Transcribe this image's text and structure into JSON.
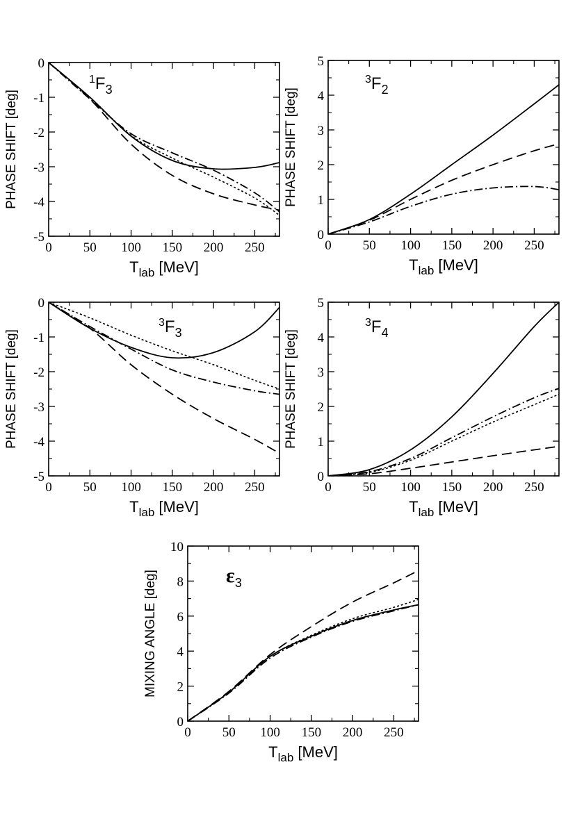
{
  "chart_data": [
    {
      "type": "line",
      "panel_label": {
        "main": "F",
        "pre": "1",
        "sub": "3"
      },
      "xlabel": {
        "main": "T",
        "sub": "lab",
        "unit": " [MeV]"
      },
      "ylabel": "PHASE  SHIFT [deg]",
      "xlim": [
        0,
        280
      ],
      "ylim": [
        -5,
        0
      ],
      "xticks": [
        0,
        50,
        100,
        150,
        200,
        250
      ],
      "yticks": [
        0,
        -1,
        -2,
        -3,
        -4,
        -5
      ],
      "series": [
        {
          "name": "solid",
          "style": "solid",
          "x": [
            0,
            50,
            100,
            150,
            200,
            250,
            280
          ],
          "y": [
            0,
            -1.0,
            -2.12,
            -2.82,
            -3.06,
            -3.02,
            -2.88
          ]
        },
        {
          "name": "long-dashed",
          "style": "dash",
          "x": [
            0,
            50,
            100,
            150,
            200,
            250,
            280
          ],
          "y": [
            0,
            -1.05,
            -2.35,
            -3.25,
            -3.78,
            -4.1,
            -4.25
          ]
        },
        {
          "name": "dash-dotted",
          "style": "dashdot",
          "x": [
            0,
            50,
            100,
            150,
            200,
            250,
            280
          ],
          "y": [
            0,
            -1.05,
            -2.05,
            -2.6,
            -3.1,
            -3.75,
            -4.3
          ]
        },
        {
          "name": "dotted",
          "style": "dot",
          "x": [
            0,
            50,
            100,
            150,
            200,
            250,
            280
          ],
          "y": [
            0,
            -1.0,
            -2.1,
            -2.75,
            -3.3,
            -3.9,
            -4.4
          ]
        }
      ]
    },
    {
      "type": "line",
      "panel_label": {
        "main": "F",
        "pre": "3",
        "sub": "2"
      },
      "xlabel": {
        "main": "T",
        "sub": "lab",
        "unit": " [MeV]"
      },
      "ylabel": "PHASE  SHIFT [deg]",
      "xlim": [
        0,
        280
      ],
      "ylim": [
        0,
        5
      ],
      "xticks": [
        0,
        50,
        100,
        150,
        200,
        250
      ],
      "yticks": [
        0,
        1,
        2,
        3,
        4,
        5
      ],
      "series": [
        {
          "name": "solid",
          "style": "solid",
          "x": [
            0,
            50,
            100,
            150,
            200,
            250,
            280
          ],
          "y": [
            0,
            0.42,
            1.15,
            2.0,
            2.85,
            3.75,
            4.3
          ]
        },
        {
          "name": "long-dashed",
          "style": "dash",
          "x": [
            0,
            50,
            100,
            150,
            200,
            250,
            280
          ],
          "y": [
            0,
            0.4,
            1.0,
            1.55,
            2.0,
            2.4,
            2.6
          ]
        },
        {
          "name": "dash-dotted",
          "style": "dashdot",
          "x": [
            0,
            50,
            100,
            150,
            200,
            250,
            280
          ],
          "y": [
            0,
            0.35,
            0.8,
            1.15,
            1.33,
            1.37,
            1.28
          ]
        }
      ]
    },
    {
      "type": "line",
      "panel_label": {
        "main": "F",
        "pre": "3",
        "sub": "3"
      },
      "xlabel": {
        "main": "T",
        "sub": "lab",
        "unit": " [MeV]"
      },
      "ylabel": "PHASE  SHIFT [deg]",
      "xlim": [
        0,
        280
      ],
      "ylim": [
        -5,
        0
      ],
      "xticks": [
        0,
        50,
        100,
        150,
        200,
        250
      ],
      "yticks": [
        0,
        -1,
        -2,
        -3,
        -4,
        -5
      ],
      "series": [
        {
          "name": "solid",
          "style": "solid",
          "x": [
            0,
            50,
            100,
            150,
            200,
            250,
            280
          ],
          "y": [
            0,
            -0.75,
            -1.3,
            -1.6,
            -1.45,
            -0.85,
            -0.15
          ]
        },
        {
          "name": "long-dashed",
          "style": "dash",
          "x": [
            0,
            50,
            100,
            150,
            200,
            250,
            280
          ],
          "y": [
            0,
            -0.75,
            -1.8,
            -2.65,
            -3.35,
            -3.95,
            -4.35
          ]
        },
        {
          "name": "dash-dotted",
          "style": "dashdot",
          "x": [
            0,
            50,
            100,
            150,
            200,
            250,
            280
          ],
          "y": [
            0,
            -0.7,
            -1.35,
            -1.95,
            -2.3,
            -2.55,
            -2.65
          ]
        },
        {
          "name": "dotted",
          "style": "dot",
          "x": [
            0,
            50,
            100,
            150,
            200,
            250,
            280
          ],
          "y": [
            0,
            -0.45,
            -0.95,
            -1.4,
            -1.8,
            -2.25,
            -2.5
          ]
        }
      ]
    },
    {
      "type": "line",
      "panel_label": {
        "main": "F",
        "pre": "3",
        "sub": "4"
      },
      "xlabel": {
        "main": "T",
        "sub": "lab",
        "unit": " [MeV]"
      },
      "ylabel": "PHASE  SHIFT [deg]",
      "xlim": [
        0,
        280
      ],
      "ylim": [
        0,
        5
      ],
      "xticks": [
        0,
        50,
        100,
        150,
        200,
        250
      ],
      "yticks": [
        0,
        1,
        2,
        3,
        4,
        5
      ],
      "series": [
        {
          "name": "solid",
          "style": "solid",
          "x": [
            0,
            50,
            100,
            150,
            200,
            250,
            280
          ],
          "y": [
            0,
            0.18,
            0.75,
            1.7,
            2.95,
            4.3,
            5.0
          ]
        },
        {
          "name": "long-dashed",
          "style": "dash",
          "x": [
            0,
            50,
            100,
            150,
            200,
            250,
            280
          ],
          "y": [
            0,
            0.06,
            0.22,
            0.4,
            0.58,
            0.75,
            0.85
          ]
        },
        {
          "name": "dash-dotted",
          "style": "dashdot",
          "x": [
            0,
            50,
            100,
            150,
            200,
            250,
            280
          ],
          "y": [
            0,
            0.12,
            0.5,
            1.1,
            1.7,
            2.25,
            2.52
          ]
        },
        {
          "name": "dotted",
          "style": "dot",
          "x": [
            0,
            50,
            100,
            150,
            200,
            250,
            280
          ],
          "y": [
            0,
            0.1,
            0.45,
            1.0,
            1.55,
            2.05,
            2.35
          ]
        }
      ]
    },
    {
      "type": "line",
      "panel_label": {
        "main": "ε",
        "pre": "",
        "sub": "3"
      },
      "xlabel": {
        "main": "T",
        "sub": "lab",
        "unit": " [MeV]"
      },
      "ylabel": "MIXING  ANGLE [deg]",
      "xlim": [
        0,
        280
      ],
      "ylim": [
        0,
        10
      ],
      "xticks": [
        0,
        50,
        100,
        150,
        200,
        250
      ],
      "yticks": [
        0,
        2,
        4,
        6,
        8,
        10
      ],
      "series": [
        {
          "name": "solid",
          "style": "solid",
          "x": [
            0,
            50,
            100,
            150,
            200,
            250,
            280
          ],
          "y": [
            0,
            1.65,
            3.7,
            4.85,
            5.75,
            6.35,
            6.65
          ]
        },
        {
          "name": "long-dashed",
          "style": "dash",
          "x": [
            0,
            50,
            100,
            150,
            200,
            250,
            280
          ],
          "y": [
            0,
            1.7,
            3.8,
            5.4,
            6.8,
            7.9,
            8.6
          ]
        },
        {
          "name": "dash-dotted",
          "style": "dashdot",
          "x": [
            0,
            50,
            100,
            150,
            200,
            250,
            280
          ],
          "y": [
            0,
            1.6,
            3.6,
            4.8,
            5.7,
            6.3,
            6.65
          ]
        },
        {
          "name": "dotted",
          "style": "dot",
          "x": [
            0,
            50,
            100,
            150,
            200,
            250,
            280
          ],
          "y": [
            0,
            1.65,
            3.7,
            4.9,
            5.85,
            6.5,
            6.95
          ]
        }
      ]
    }
  ]
}
